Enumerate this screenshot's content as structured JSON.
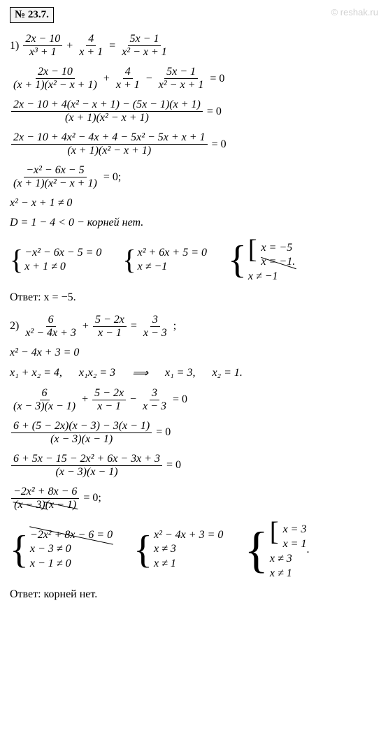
{
  "header": "№ 23.7.",
  "watermark": "© reshak.ru",
  "p1": {
    "label": "1)",
    "eq1_f1_num": "2x − 10",
    "eq1_f1_den": "x³ + 1",
    "eq1_f2_num": "4",
    "eq1_f2_den": "x + 1",
    "eq1_f3_num": "5x − 1",
    "eq1_f3_den": "x² − x + 1",
    "eq2_f1_num": "2x − 10",
    "eq2_f1_den": "(x + 1)(x² − x + 1)",
    "eq2_f2_num": "4",
    "eq2_f2_den": "x + 1",
    "eq2_f3_num": "5x − 1",
    "eq2_f3_den": "x² − x + 1",
    "eq3_num": "2x − 10 + 4(x² − x + 1) − (5x − 1)(x + 1)",
    "eq3_den": "(x + 1)(x² − x + 1)",
    "eq4_num": "2x − 10 + 4x² − 4x + 4 − 5x² − 5x + x + 1",
    "eq4_den": "(x + 1)(x² − x + 1)",
    "eq5_num": "−x² − 6x − 5",
    "eq5_den": "(x + 1)(x² − x + 1)",
    "check1": "x² − x + 1 ≠ 0",
    "check2": "D = 1 − 4 < 0 − корней нет.",
    "sys1a": "−x² − 6x − 5 = 0",
    "sys1b": "x + 1 ≠ 0",
    "sys2a": "x² + 6x + 5 = 0",
    "sys2b": "x ≠ −1",
    "sys3a": "x = −5",
    "sys3b": "x = −1.",
    "sys3c": "x ≠ −1",
    "answer": "Ответ: x = −5."
  },
  "p2": {
    "label": "2)",
    "eq1_f1_num": "6",
    "eq1_f1_den": "x² − 4x + 3",
    "eq1_f2_num": "5 − 2x",
    "eq1_f2_den": "x − 1",
    "eq1_f3_num": "3",
    "eq1_f3_den": "x − 3",
    "factor": "x² − 4x + 3 = 0",
    "vieta1": "x₁ + x₂ = 4,",
    "vieta2": "x₁x₂ = 3",
    "vieta_arrow": "⟹",
    "vieta3": "x₁ = 3,",
    "vieta4": "x₂ = 1.",
    "eq2_f1_num": "6",
    "eq2_f1_den": "(x − 3)(x − 1)",
    "eq2_f2_num": "5 − 2x",
    "eq2_f2_den": "x − 1",
    "eq2_f3_num": "3",
    "eq2_f3_den": "x − 3",
    "eq3_num": "6 + (5 − 2x)(x − 3) − 3(x − 1)",
    "eq3_den": "(x − 3)(x − 1)",
    "eq4_num": "6 + 5x − 15 − 2x² + 6x − 3x + 3",
    "eq4_den": "(x − 3)(x − 1)",
    "eq5_num": "−2x² + 8x − 6",
    "eq5_den": "(x − 3)(x − 1)",
    "sys1a": "−2x² + 8x − 6 = 0",
    "sys1b": "x − 3 ≠ 0",
    "sys1c": "x − 1 ≠ 0",
    "sys2a": "x² − 4x + 3 = 0",
    "sys2b": "x ≠ 3",
    "sys2c": "x ≠ 1",
    "sys3a": "x = 3",
    "sys3b": "x = 1",
    "sys3c": "x ≠ 3",
    "sys3d": "x ≠ 1",
    "answer": "Ответ: корней нет."
  }
}
